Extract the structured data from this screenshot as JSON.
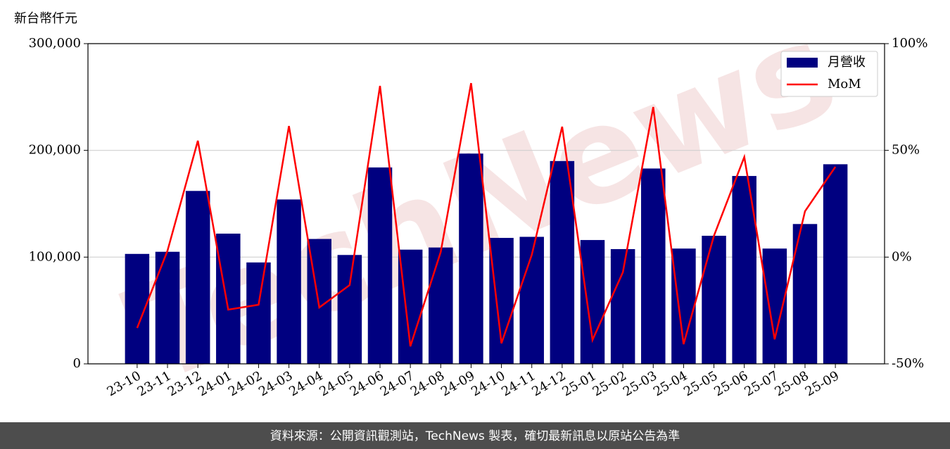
{
  "chart_data": {
    "type": "bar-line",
    "y_label": "新台幣仟元",
    "watermark": "TechNews",
    "footer": "資料來源：公開資訊觀測站，TechNews 製表，確切最新訊息以原站公告為準",
    "categories": [
      "23-10",
      "23-11",
      "23-12",
      "24-01",
      "24-02",
      "24-03",
      "24-04",
      "24-05",
      "24-06",
      "24-07",
      "24-08",
      "24-09",
      "24-10",
      "24-11",
      "24-12",
      "25-01",
      "25-02",
      "25-03",
      "25-04",
      "25-05",
      "25-06",
      "25-07",
      "25-08",
      "25-09"
    ],
    "series": [
      {
        "name": "月營收",
        "color": "#000080",
        "type": "bar",
        "values": [
          103000,
          105000,
          162000,
          122000,
          95000,
          154000,
          117000,
          102000,
          184000,
          107000,
          109000,
          197000,
          118000,
          119000,
          190000,
          116000,
          107500,
          183000,
          108000,
          120000,
          176000,
          108000,
          131000,
          187000
        ]
      },
      {
        "name": "MoM",
        "color": "#ff0000",
        "type": "line",
        "axis": "y2",
        "values": [
          -33.2,
          3,
          54.5,
          -24.6,
          -22.3,
          61.4,
          -23.6,
          -13.1,
          80.2,
          -41.8,
          2.4,
          81.5,
          -40.4,
          1.1,
          61.1,
          -38.8,
          -7.1,
          70.3,
          -40.8,
          10,
          46.9,
          -38.5,
          21.5,
          42.3
        ]
      }
    ],
    "ylim": [
      0,
      300000
    ],
    "yticks": [
      0,
      {
        "value": 100000,
        "label": "100,000"
      },
      {
        "value": 200000,
        "label": "200,000"
      },
      {
        "value": 300000,
        "label": "300,000"
      }
    ],
    "y2lim": [
      -50,
      100
    ],
    "y2ticks": [
      {
        "value": -50,
        "label": "-50%"
      },
      {
        "value": 0,
        "label": "0%"
      },
      {
        "value": 50,
        "label": "50%"
      },
      {
        "value": 100,
        "label": "100%"
      }
    ],
    "grid": true,
    "legend": "upper right"
  }
}
